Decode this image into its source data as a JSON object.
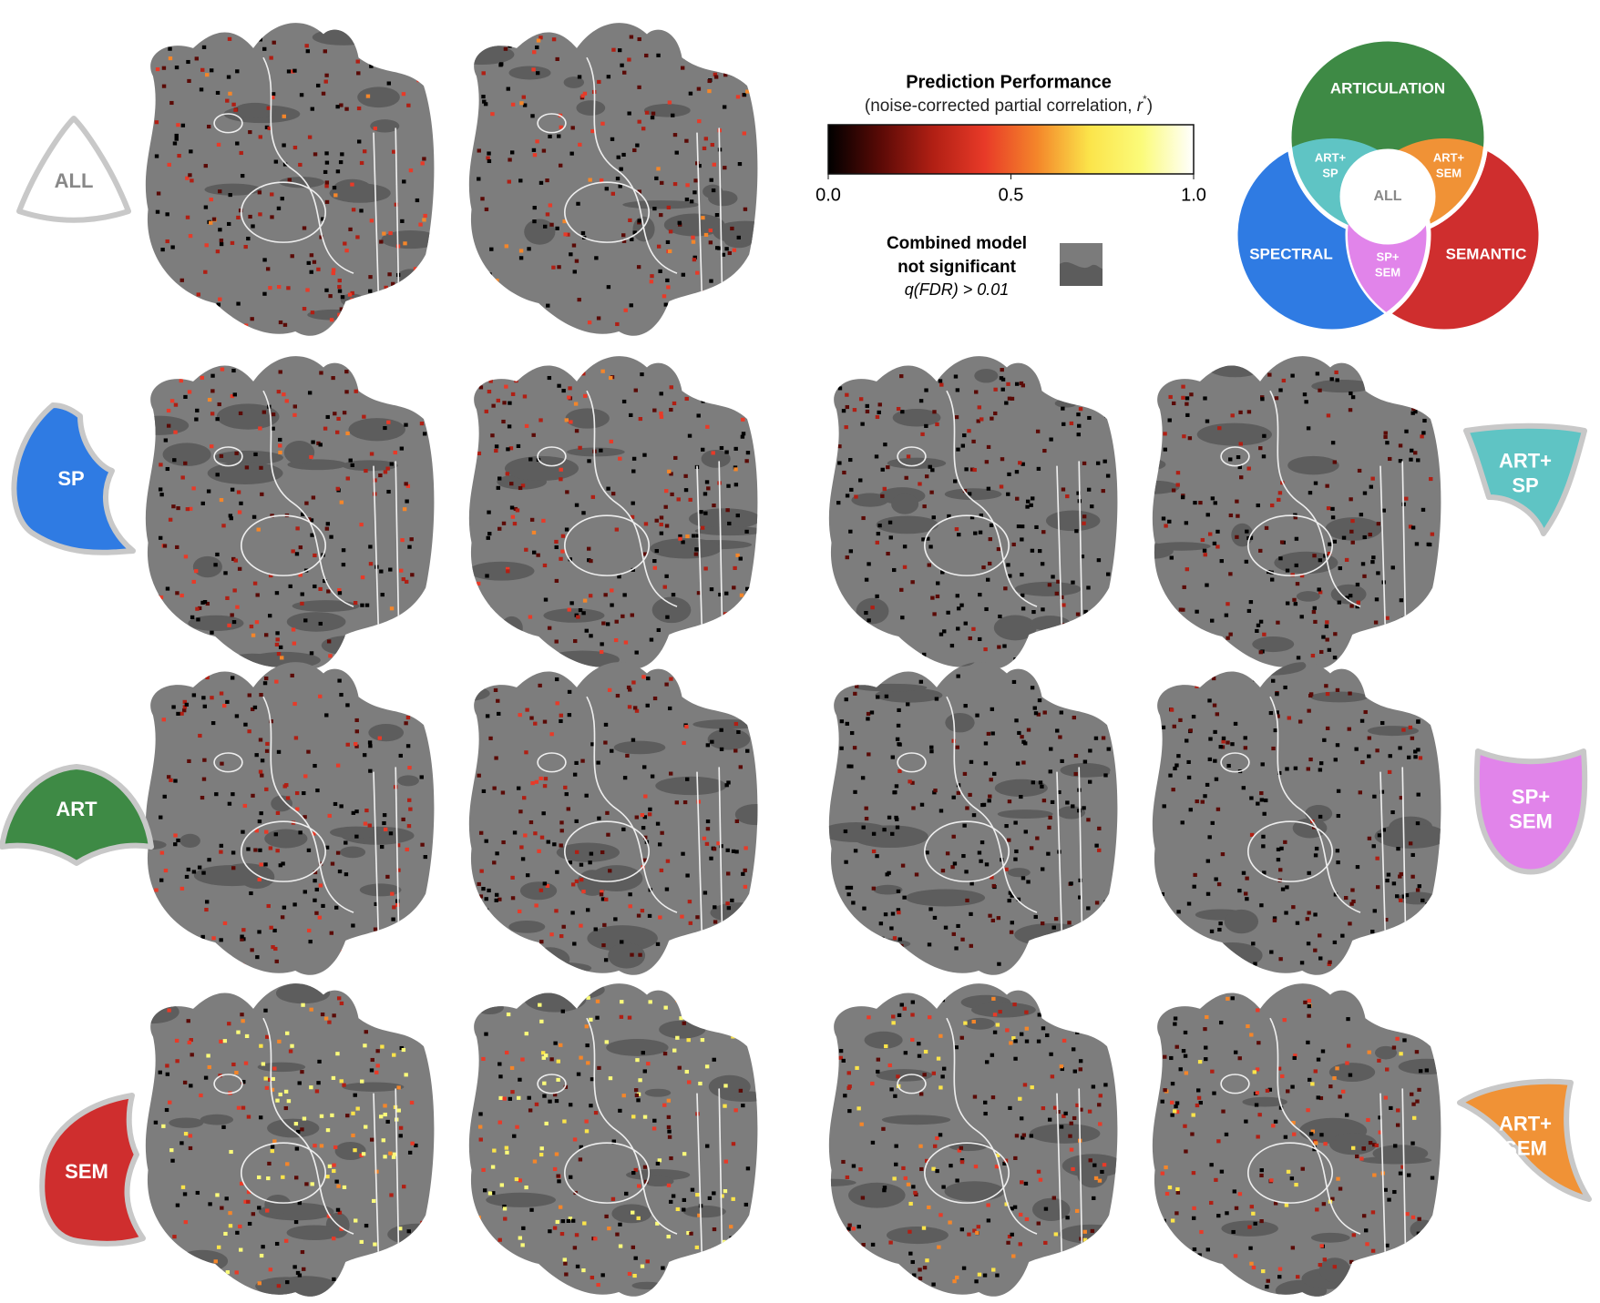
{
  "legend": {
    "title": "Prediction Performance",
    "subtitle_parts": [
      "(noise-corrected partial correlation, ",
      "r",
      "*",
      ")"
    ],
    "colormap": [
      "#000000",
      "#5a0a06",
      "#b01f14",
      "#e83a28",
      "#f4862a",
      "#fbe44a",
      "#fbfb7a",
      "#ffffff"
    ],
    "lim": [
      0,
      1
    ],
    "ticks": [
      {
        "value": 0,
        "label": "0.0"
      },
      {
        "value": 0.5,
        "label": "0.5"
      },
      {
        "value": 1,
        "label": "1.0"
      }
    ],
    "nonsig": [
      "Combined model",
      "not significant",
      "q(FDR) > 0.01"
    ]
  },
  "venn": {
    "articulation": "ARTICULATION",
    "spectral": "SPECTRAL",
    "semantic": "SEMANTIC",
    "art_sp": [
      "ART+",
      "SP"
    ],
    "art_sem": [
      "ART+",
      "SEM"
    ],
    "sp_sem": [
      "SP+",
      "SEM"
    ],
    "all": "ALL"
  },
  "panels": [
    {
      "label": [
        "ALL"
      ]
    },
    {
      "label": [
        "SP"
      ]
    },
    {
      "label": [
        "ART"
      ]
    },
    {
      "label": [
        "SEM"
      ]
    },
    {
      "label": [
        "ART+",
        "SP"
      ]
    },
    {
      "label": [
        "SP+",
        "SEM"
      ]
    },
    {
      "label": [
        "ART+",
        "SEM"
      ]
    }
  ]
}
